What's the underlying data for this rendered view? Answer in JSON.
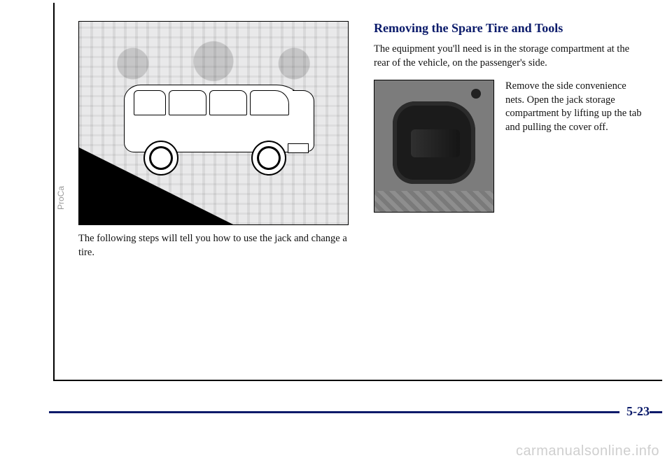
{
  "left": {
    "caption": "The following steps will tell you how to use the jack and change a tire."
  },
  "right": {
    "heading": "Removing the Spare Tire and Tools",
    "intro": "The equipment you'll need is in the storage compartment at the rear of the vehicle, on the passenger's side.",
    "step": "Remove the side convenience nets. Open the jack storage compartment by lifting up the tab and pulling the cover off."
  },
  "page_number": "5-23",
  "watermark": "carmanualsonline.info",
  "gutter_mark": "ProCa"
}
